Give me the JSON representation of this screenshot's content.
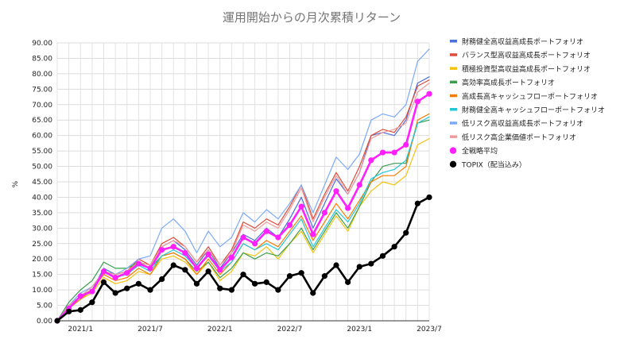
{
  "chart_data": {
    "type": "line",
    "title": "運用開始からの月次累積リターン",
    "ylabel": "%",
    "xlabel": "",
    "ylim": [
      0,
      90
    ],
    "yticks": [
      "0.00",
      "5.00",
      "10.00",
      "15.00",
      "20.00",
      "25.00",
      "30.00",
      "35.00",
      "40.00",
      "45.00",
      "50.00",
      "55.00",
      "60.00",
      "65.00",
      "70.00",
      "75.00",
      "80.00",
      "85.00",
      "90.00"
    ],
    "xticks": [
      {
        "label": "2021/1",
        "index": 2
      },
      {
        "label": "2021/7",
        "index": 8
      },
      {
        "label": "2022/1",
        "index": 14
      },
      {
        "label": "2022/7",
        "index": 20
      },
      {
        "label": "2023/1",
        "index": 26
      },
      {
        "label": "2023/7",
        "index": 32
      }
    ],
    "x": [
      "2020/11",
      "2020/12",
      "2021/1",
      "2021/2",
      "2021/3",
      "2021/4",
      "2021/5",
      "2021/6",
      "2021/7",
      "2021/8",
      "2021/9",
      "2021/10",
      "2021/11",
      "2021/12",
      "2022/1",
      "2022/2",
      "2022/3",
      "2022/4",
      "2022/5",
      "2022/6",
      "2022/7",
      "2022/8",
      "2022/9",
      "2022/10",
      "2022/11",
      "2022/12",
      "2023/1",
      "2023/2",
      "2023/3",
      "2023/4",
      "2023/5",
      "2023/6",
      "2023/7"
    ],
    "grid": true,
    "legend_position": "right",
    "series": [
      {
        "name": "財務健全高収益高成長ポートフォリオ",
        "color": "#4a6fd8",
        "width": 1.2,
        "values": [
          0,
          5,
          8,
          10,
          17,
          15,
          16,
          19,
          18,
          24,
          26,
          23,
          18,
          23,
          17,
          22,
          28,
          26,
          30,
          27,
          33,
          40,
          30,
          38,
          46,
          41,
          48,
          60,
          61,
          60,
          65,
          77,
          79
        ]
      },
      {
        "name": "バランス型高収益高成長ポートフォリオ",
        "color": "#dd4b39",
        "width": 1.2,
        "values": [
          0,
          5,
          8,
          10,
          16,
          15,
          16,
          20,
          18,
          25,
          27,
          24,
          19,
          24,
          18,
          23,
          32,
          30,
          33,
          31,
          37,
          44,
          33,
          41,
          48,
          42,
          50,
          60,
          62,
          61,
          66,
          76,
          78
        ]
      },
      {
        "name": "積極投資型高収益高成長ポートフォリオ",
        "color": "#f4c20d",
        "width": 1.2,
        "values": [
          0,
          4,
          7,
          9,
          14,
          12,
          13,
          16,
          15,
          20,
          21,
          19,
          15,
          19,
          13,
          16,
          22,
          21,
          24,
          20,
          25,
          29,
          22,
          28,
          34,
          29,
          37,
          42,
          45,
          44,
          47,
          57,
          59
        ]
      },
      {
        "name": "高効率高成長ポートフォリオ",
        "color": "#3c9d4e",
        "width": 1.2,
        "values": [
          0,
          6,
          10,
          13,
          19,
          17,
          17,
          19,
          17,
          21,
          22,
          20,
          16,
          19,
          14,
          17,
          22,
          20,
          22,
          21,
          25,
          30,
          23,
          29,
          35,
          30,
          37,
          45,
          50,
          51,
          51,
          64,
          65
        ]
      },
      {
        "name": "高成長高キャッシュフローポートフォリオ",
        "color": "#f57c00",
        "width": 1.2,
        "values": [
          0,
          4,
          7,
          10,
          15,
          13,
          14,
          17,
          15,
          21,
          22,
          20,
          15,
          20,
          15,
          19,
          25,
          23,
          26,
          24,
          29,
          34,
          26,
          32,
          38,
          33,
          39,
          45,
          47,
          47,
          50,
          65,
          67
        ]
      },
      {
        "name": "財務健全高キャッシュフローポートフォリオ",
        "color": "#26c6da",
        "width": 1.2,
        "values": [
          0,
          5,
          8,
          11,
          16,
          14,
          15,
          18,
          16,
          21,
          23,
          21,
          17,
          21,
          16,
          19,
          25,
          23,
          25,
          23,
          28,
          33,
          24,
          30,
          36,
          32,
          38,
          46,
          48,
          49,
          52,
          64,
          66
        ]
      },
      {
        "name": "低リスク高収益高成長ポートフォリオ",
        "color": "#7baaf7",
        "width": 1.2,
        "values": [
          0,
          5,
          9,
          11,
          16,
          15,
          17,
          20,
          21,
          30,
          33,
          29,
          22,
          29,
          24,
          27,
          35,
          32,
          36,
          33,
          38,
          44,
          35,
          44,
          53,
          49,
          54,
          65,
          67,
          66,
          70,
          84,
          88
        ]
      },
      {
        "name": "低リスク高企業価値ポートフォリオ",
        "color": "#ef9a9a",
        "width": 1.2,
        "values": [
          0,
          5,
          8,
          11,
          16,
          15,
          16,
          19,
          18,
          24,
          26,
          24,
          19,
          23,
          18,
          22,
          31,
          29,
          32,
          30,
          36,
          43,
          32,
          40,
          47,
          41,
          48,
          59,
          61,
          62,
          64,
          74,
          77
        ]
      },
      {
        "name": "全戦略平均",
        "color": "#ff1fff",
        "width": 2.6,
        "markers": true,
        "marker_radius": 3.6,
        "values": [
          0,
          4,
          8,
          9.5,
          16,
          14,
          15.5,
          18.5,
          17,
          23,
          24,
          22,
          17,
          21.5,
          16.5,
          20.5,
          27,
          25,
          29,
          27,
          31,
          37,
          28,
          35,
          42,
          36.5,
          44,
          52,
          54.5,
          54.5,
          57,
          71,
          73.5
        ]
      },
      {
        "name": "TOPIX（配当込み）",
        "color": "#000000",
        "width": 2.6,
        "markers": true,
        "marker_radius": 3.6,
        "values": [
          0,
          3,
          3.5,
          6,
          12.5,
          9,
          10.5,
          12,
          10,
          13.5,
          18,
          16.5,
          12,
          16,
          10.5,
          10,
          15,
          12,
          12.5,
          10,
          14.5,
          15.5,
          9,
          14.5,
          18,
          12.5,
          17.5,
          18.5,
          21,
          24,
          28.5,
          38,
          40
        ]
      }
    ]
  }
}
